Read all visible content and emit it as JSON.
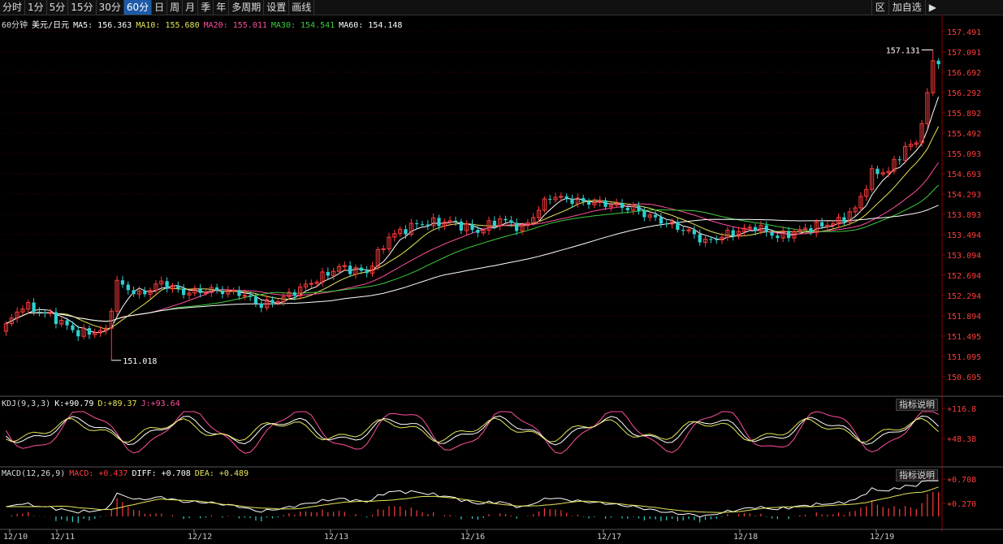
{
  "toolbar": {
    "periods": [
      "分时",
      "1分",
      "5分",
      "15分",
      "30分",
      "60分",
      "日",
      "周",
      "月",
      "季",
      "年",
      "多周期",
      "设置",
      "画线"
    ],
    "active": "60分",
    "right": [
      "区",
      "加自选"
    ]
  },
  "main_legend": {
    "period": "60分钟",
    "symbol": "美元/日元",
    "items": [
      {
        "label": "MA5:",
        "value": "156.363",
        "color": "#ffffff"
      },
      {
        "label": "MA10:",
        "value": "155.680",
        "color": "#e6e65a"
      },
      {
        "label": "MA20:",
        "value": "155.011",
        "color": "#ff4fa0"
      },
      {
        "label": "MA30:",
        "value": "154.541",
        "color": "#3ccd3c"
      },
      {
        "label": "MA60:",
        "value": "154.148",
        "color": "#ffffff"
      }
    ]
  },
  "kdj_legend": {
    "name": "KDJ(9,3,3)",
    "items": [
      {
        "label": "K:",
        "value": "+90.79",
        "color": "#ffffff"
      },
      {
        "label": "D:",
        "value": "+89.37",
        "color": "#e6e65a"
      },
      {
        "label": "J:",
        "value": "+93.64",
        "color": "#ff4fa0"
      }
    ]
  },
  "macd_legend": {
    "name": "MACD(12,26,9)",
    "items": [
      {
        "label": "MACD:",
        "value": "+0.437",
        "color": "#ff3b3b"
      },
      {
        "label": "DIFF:",
        "value": "+0.708",
        "color": "#ffffff"
      },
      {
        "label": "DEA:",
        "value": "+0.489",
        "color": "#e6e65a"
      }
    ]
  },
  "help_label": "指标说明",
  "colors": {
    "up": "#ff3b3b",
    "down": "#2ed0d0",
    "grid": "#8b0000",
    "axis": "#8b0000",
    "label": "#ff3b3b"
  },
  "chart_data": {
    "type": "candlestick",
    "y_ticks": [
      "157.491",
      "157.091",
      "156.692",
      "156.292",
      "155.892",
      "155.492",
      "155.093",
      "154.693",
      "154.293",
      "153.893",
      "153.494",
      "153.094",
      "152.694",
      "152.294",
      "151.894",
      "151.495",
      "151.095",
      "150.695"
    ],
    "ylim": [
      150.495,
      157.691
    ],
    "x_labels": [
      "12/10",
      "12/11",
      "12/12",
      "12/13",
      "12/16",
      "12/17",
      "12/18",
      "12/19"
    ],
    "max_label": "157.131",
    "min_label": "151.018",
    "kdj_ticks": [
      "+116.8",
      "+48.38"
    ],
    "macd_ticks": [
      "+0.708",
      "+0.270"
    ],
    "close_anchors": [
      {
        "i": 0,
        "v": 151.7
      },
      {
        "i": 3,
        "v": 152.1
      },
      {
        "i": 8,
        "v": 151.9
      },
      {
        "i": 13,
        "v": 151.55
      },
      {
        "i": 18,
        "v": 151.6
      },
      {
        "i": 20,
        "v": 152.55
      },
      {
        "i": 24,
        "v": 152.3
      },
      {
        "i": 28,
        "v": 152.55
      },
      {
        "i": 32,
        "v": 152.35
      },
      {
        "i": 37,
        "v": 152.4
      },
      {
        "i": 42,
        "v": 152.35
      },
      {
        "i": 46,
        "v": 152.1
      },
      {
        "i": 50,
        "v": 152.25
      },
      {
        "i": 55,
        "v": 152.55
      },
      {
        "i": 60,
        "v": 152.85
      },
      {
        "i": 65,
        "v": 152.75
      },
      {
        "i": 69,
        "v": 153.45
      },
      {
        "i": 74,
        "v": 153.7
      },
      {
        "i": 80,
        "v": 153.75
      },
      {
        "i": 85,
        "v": 153.55
      },
      {
        "i": 89,
        "v": 153.8
      },
      {
        "i": 93,
        "v": 153.6
      },
      {
        "i": 98,
        "v": 154.25
      },
      {
        "i": 103,
        "v": 154.15
      },
      {
        "i": 108,
        "v": 154.1
      },
      {
        "i": 113,
        "v": 154.0
      },
      {
        "i": 117,
        "v": 153.8
      },
      {
        "i": 123,
        "v": 153.55
      },
      {
        "i": 126,
        "v": 153.35
      },
      {
        "i": 130,
        "v": 153.5
      },
      {
        "i": 135,
        "v": 153.65
      },
      {
        "i": 139,
        "v": 153.45
      },
      {
        "i": 144,
        "v": 153.6
      },
      {
        "i": 150,
        "v": 153.75
      },
      {
        "i": 153,
        "v": 154.0
      },
      {
        "i": 156,
        "v": 154.7
      },
      {
        "i": 159,
        "v": 154.75
      },
      {
        "i": 162,
        "v": 155.2
      },
      {
        "i": 164,
        "v": 155.3
      },
      {
        "i": 166,
        "v": 156.2
      },
      {
        "i": 167,
        "v": 156.95
      },
      {
        "i": 168,
        "v": 156.85
      }
    ],
    "bar_count": 169,
    "min_bar": 19,
    "max_bar": 167
  }
}
